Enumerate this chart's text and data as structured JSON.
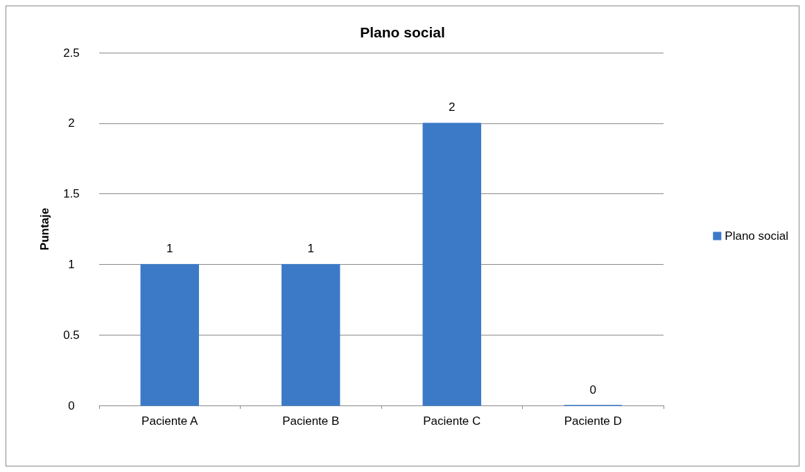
{
  "chart_data": {
    "type": "bar",
    "title": "Plano social",
    "ylabel": "Puntaje",
    "categories": [
      "Paciente A",
      "Paciente B",
      "Paciente C",
      "Paciente D"
    ],
    "series": [
      {
        "name": "Plano social",
        "color": "#3c7ac8",
        "values": [
          1,
          1,
          2,
          0
        ]
      }
    ],
    "ylim": [
      0,
      2.5
    ],
    "yticks": [
      0,
      0.5,
      1,
      1.5,
      2,
      2.5
    ],
    "grid": "y",
    "legend": "right",
    "data_labels": true
  }
}
